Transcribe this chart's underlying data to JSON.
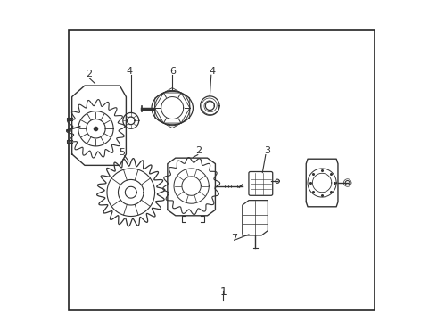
{
  "bg_color": "#ffffff",
  "border_color": "#222222",
  "line_color": "#333333",
  "figsize": [
    4.9,
    3.6
  ],
  "dpi": 100,
  "outer_border": [
    0.03,
    0.09,
    0.96,
    0.88
  ]
}
